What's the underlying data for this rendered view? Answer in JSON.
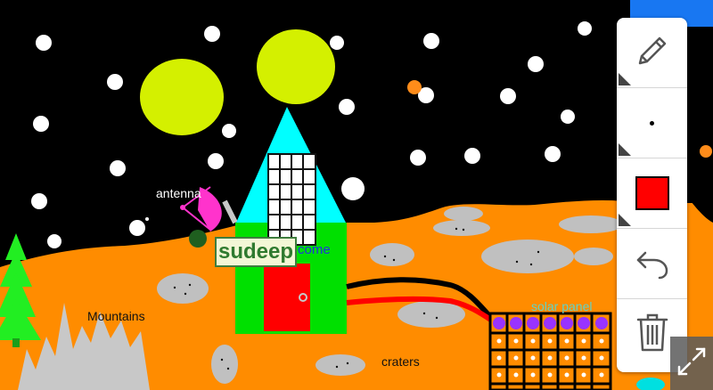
{
  "drawing": {
    "labels": {
      "antenna": "antenna",
      "mountains": "Mountains",
      "craters": "craters",
      "solar_panel": "solar panel",
      "come": "come"
    },
    "name_tag": "sudeep"
  },
  "toolbar": {
    "tools": [
      {
        "name": "pencil-icon"
      },
      {
        "name": "brush-size-dot"
      },
      {
        "name": "color-swatch",
        "color": "#ff0000"
      },
      {
        "name": "undo-icon"
      },
      {
        "name": "trash-icon"
      }
    ]
  },
  "colors": {
    "sky": "#000000",
    "ground": "#ff8c00",
    "crater": "#c0c0c0",
    "moon": "#d4f000",
    "house": "#00e000",
    "roof": "#00ffff",
    "door": "#ff0000",
    "accent": "#1877f2"
  }
}
